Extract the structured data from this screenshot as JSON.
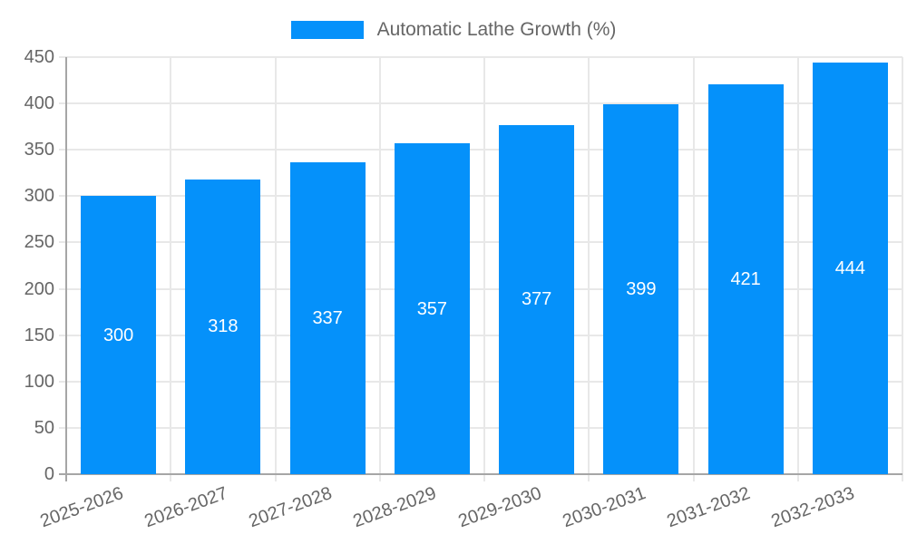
{
  "chart_data": {
    "type": "bar",
    "title": "",
    "legend": [
      "Automatic Lathe Growth (%)"
    ],
    "legend_position": "top",
    "categories": [
      "2025-2026",
      "2026-2027",
      "2027-2028",
      "2028-2029",
      "2029-2030",
      "2030-2031",
      "2031-2032",
      "2032-2033"
    ],
    "series": [
      {
        "name": "Automatic Lathe Growth (%)",
        "values": [
          300,
          318,
          337,
          357,
          377,
          399,
          421,
          444
        ]
      }
    ],
    "bar_value_labels": [
      "300",
      "318",
      "337",
      "357",
      "377",
      "399",
      "421",
      "444"
    ],
    "ylim": [
      0,
      450
    ],
    "ytick_step": 50,
    "yticks": [
      0,
      50,
      100,
      150,
      200,
      250,
      300,
      350,
      400,
      450
    ],
    "grid": true,
    "colors": {
      "bar": "#0591FA",
      "bar_label": "#FFFFFF",
      "axis_text": "#666666",
      "grid_line": "#E8E8E8",
      "axis_line": "#A6A6A6"
    }
  }
}
